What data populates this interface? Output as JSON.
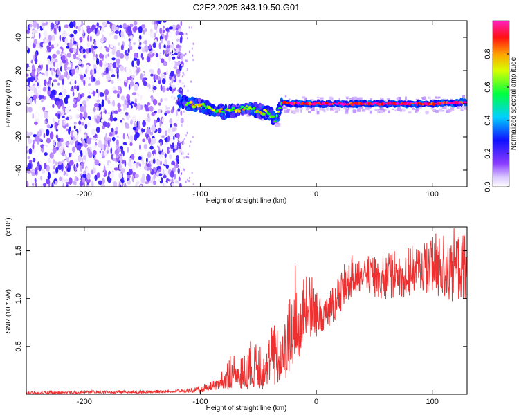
{
  "title": "C2E2.2025.343.19.50.G01",
  "chart_data": [
    {
      "type": "heatmap",
      "xlabel": "Height of straight line (km)",
      "ylabel": "Frequency (Hz)",
      "xlim": [
        -250,
        130
      ],
      "ylim": [
        -50,
        50
      ],
      "xticks": [
        -200,
        -100,
        0,
        100
      ],
      "yticks": [
        -40,
        -20,
        0,
        20,
        40
      ],
      "colorbar": {
        "label": "Normalized spectral amplitude",
        "range": [
          0.0,
          1.0
        ],
        "ticks": [
          "0.0",
          "0.2",
          "0.4",
          "0.6",
          "0.8"
        ],
        "colors": [
          "#ffffff",
          "#9b59ff",
          "#0000ff",
          "#00ffff",
          "#00ff00",
          "#ffff00",
          "#ff0000",
          "#ff00ff"
        ]
      },
      "regions": [
        {
          "x": [
            -250,
            -115
          ],
          "freq": [
            -50,
            50
          ],
          "description": "broadband noise, amplitude ~0.0-0.25"
        },
        {
          "x": [
            -115,
            -30
          ],
          "freq": [
            -12,
            8
          ],
          "description": "scattered signal, amplitude ~0.3-0.6"
        },
        {
          "x": [
            -30,
            130
          ],
          "freq": [
            -2,
            2
          ],
          "description": "strong narrow band near 0 Hz, amplitude ~0.6-1.0"
        }
      ],
      "ridge": {
        "x": [
          -120,
          -110,
          -100,
          -90,
          -80,
          -70,
          -60,
          -50,
          -40,
          -35,
          -30,
          -20,
          -10,
          0,
          20,
          40,
          60,
          80,
          100,
          130
        ],
        "y": [
          2,
          0,
          -1,
          -3,
          -5,
          -4,
          -2,
          -4,
          -6,
          -10,
          1,
          0,
          0,
          0,
          0,
          0,
          0,
          0,
          0,
          1
        ]
      }
    },
    {
      "type": "line",
      "xlabel": "Height of straight line (km)",
      "ylabel": "SNR (10 * v/v)",
      "y_multiplier": "(x10⁴)",
      "xlim": [
        -250,
        130
      ],
      "ylim": [
        0,
        1.75
      ],
      "xticks": [
        -200,
        -100,
        0,
        100
      ],
      "yticks": [
        "0.5",
        "1.0",
        "1.5"
      ],
      "color": "#ee3030",
      "series": [
        {
          "x": [
            -250,
            -200,
            -150,
            -120,
            -110,
            -100,
            -90,
            -80,
            -75,
            -70,
            -65,
            -60,
            -55,
            -50,
            -45,
            -40,
            -35,
            -30,
            -25,
            -20,
            -18,
            -15,
            -12,
            -10,
            -8,
            -5,
            0,
            5,
            10,
            15,
            20,
            25,
            30,
            35,
            40,
            50,
            60,
            70,
            80,
            90,
            100,
            110,
            120,
            130
          ],
          "y": [
            0.01,
            0.02,
            0.02,
            0.03,
            0.03,
            0.04,
            0.07,
            0.12,
            0.18,
            0.2,
            0.22,
            0.28,
            0.25,
            0.3,
            0.3,
            0.35,
            0.38,
            0.35,
            0.4,
            0.55,
            0.75,
            0.6,
            0.8,
            0.9,
            0.85,
            0.85,
            0.82,
            0.85,
            0.92,
            0.95,
            1.02,
            1.1,
            1.2,
            1.25,
            1.28,
            1.25,
            1.22,
            1.25,
            1.28,
            1.3,
            1.35,
            1.38,
            1.35,
            1.32
          ],
          "upper_envelope": [
            0.03,
            0.04,
            0.04,
            0.05,
            0.06,
            0.08,
            0.15,
            0.25,
            0.42,
            0.45,
            0.38,
            0.5,
            0.6,
            0.6,
            0.68,
            0.75,
            0.75,
            0.55,
            0.95,
            1.1,
            1.48,
            1.0,
            1.38,
            1.42,
            1.35,
            1.3,
            1.15,
            1.1,
            1.05,
            1.15,
            1.25,
            1.4,
            1.45,
            1.48,
            1.5,
            1.45,
            1.5,
            1.5,
            1.55,
            1.58,
            1.65,
            1.75,
            1.75,
            1.65
          ],
          "lower_envelope": [
            0.0,
            0.01,
            0.01,
            0.02,
            0.02,
            0.02,
            0.03,
            0.05,
            0.05,
            0.06,
            0.05,
            0.05,
            0.04,
            0.05,
            0.05,
            0.08,
            0.1,
            0.12,
            0.18,
            0.3,
            0.45,
            0.35,
            0.5,
            0.6,
            0.55,
            0.58,
            0.6,
            0.65,
            0.7,
            0.75,
            0.85,
            0.9,
            1.0,
            1.05,
            1.05,
            1.0,
            0.98,
            1.0,
            1.02,
            1.05,
            1.05,
            0.98,
            0.95,
            0.95
          ]
        }
      ]
    }
  ]
}
